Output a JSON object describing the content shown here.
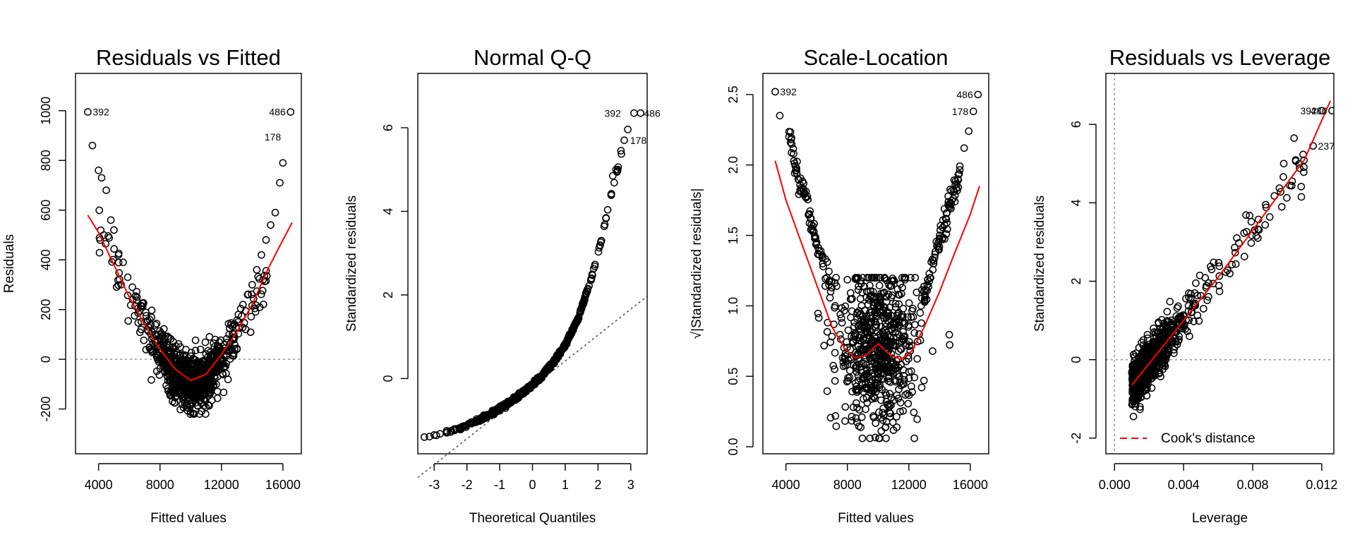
{
  "chart_data": [
    {
      "type": "scatter",
      "title": "Residuals vs Fitted",
      "xlabel": "Fitted values",
      "ylabel": "Residuals",
      "xlim": [
        2500,
        17200
      ],
      "ylim": [
        -380,
        1150
      ],
      "xticks": [
        4000,
        8000,
        12000,
        16000
      ],
      "xtick_labels": [
        "4000",
        "8000",
        "12000",
        "16000"
      ],
      "yticks": [
        -200,
        0,
        200,
        400,
        600,
        800,
        1000
      ],
      "ytick_labels": [
        "-200",
        "0",
        "200",
        "400",
        "600",
        "800",
        "1000"
      ],
      "reference_line": {
        "type": "h",
        "value": 0,
        "style": "dotted",
        "color": "#999999"
      },
      "smooth_color": "#ff0000",
      "smooth": {
        "x": [
          3300,
          4000,
          5000,
          6000,
          7000,
          8000,
          9000,
          10000,
          11000,
          12000,
          13000,
          14000,
          15000,
          16000,
          16600
        ],
        "y": [
          580,
          510,
          380,
          250,
          140,
          40,
          -40,
          -85,
          -60,
          20,
          110,
          220,
          360,
          480,
          550
        ]
      },
      "curve_points": {
        "x": [
          3300,
          3600,
          4000,
          4200,
          4500,
          4800,
          5000,
          5300,
          5600,
          5900,
          6200,
          6500,
          6800,
          7100,
          7400,
          7700,
          8000,
          8300,
          8600,
          8900,
          9200,
          9500,
          9800,
          10100,
          10400,
          10700,
          11000,
          11300,
          11600,
          11900,
          12200,
          12500,
          12800,
          13100,
          13400,
          13700,
          14000,
          14300,
          14600,
          14900,
          15200,
          15500,
          15800,
          16000,
          16500
        ],
        "y": [
          995,
          860,
          760,
          730,
          680,
          560,
          520,
          420,
          390,
          330,
          290,
          250,
          215,
          175,
          140,
          100,
          60,
          20,
          -20,
          -60,
          -100,
          -140,
          -160,
          -150,
          -120,
          -90,
          -60,
          -30,
          0,
          30,
          60,
          100,
          140,
          180,
          220,
          260,
          300,
          360,
          420,
          480,
          540,
          590,
          710,
          790,
          995
        ]
      },
      "point_labels": [
        {
          "text": "392",
          "x": 3300,
          "y": 995,
          "side": "right"
        },
        {
          "text": "486",
          "x": 16500,
          "y": 995,
          "side": "left"
        },
        {
          "text": "178",
          "x": 16200,
          "y": 895,
          "side": "left"
        }
      ],
      "band_center_x": 10000,
      "band_half_width": 4200,
      "band_center_y": -100
    },
    {
      "type": "scatter",
      "title": "Normal Q-Q",
      "xlabel": "Theoretical Quantiles",
      "ylabel": "Standardized residuals",
      "xlim": [
        -3.5,
        3.5
      ],
      "ylim": [
        -1.8,
        7.3
      ],
      "xticks": [
        -3,
        -2,
        -1,
        0,
        1,
        2,
        3
      ],
      "xtick_labels": [
        "-3",
        "-2",
        "-1",
        "0",
        "1",
        "2",
        "3"
      ],
      "yticks": [
        0,
        2,
        4,
        6
      ],
      "ytick_labels": [
        "0",
        "2",
        "4",
        "6"
      ],
      "reference_line": {
        "type": "ab",
        "intercept": -0.2,
        "slope": 0.62,
        "style": "dotted",
        "color": "#555555"
      },
      "qq_curve": {
        "x": [
          -3.3,
          -3.0,
          -2.6,
          -2.2,
          -1.8,
          -1.4,
          -1.0,
          -0.6,
          -0.2,
          0.2,
          0.6,
          1.0,
          1.4,
          1.8,
          2.1,
          2.4,
          2.6,
          2.8,
          3.1
        ],
        "y": [
          -1.4,
          -1.35,
          -1.28,
          -1.18,
          -1.05,
          -0.9,
          -0.72,
          -0.52,
          -0.28,
          0.0,
          0.35,
          0.8,
          1.45,
          2.4,
          3.3,
          4.4,
          5.0,
          5.7,
          6.35
        ]
      },
      "point_labels": [
        {
          "text": "392",
          "x": 2.85,
          "y": 6.35,
          "side": "left"
        },
        {
          "text": "486",
          "x": 3.25,
          "y": 6.35,
          "side": "right"
        },
        {
          "text": "178",
          "x": 2.83,
          "y": 5.7,
          "side": "right"
        }
      ]
    },
    {
      "type": "scatter",
      "title": "Scale-Location",
      "xlabel": "Fitted values",
      "ylabel": "√|Standardized residuals|",
      "xlim": [
        2500,
        17200
      ],
      "ylim": [
        -0.05,
        2.65
      ],
      "xticks": [
        4000,
        8000,
        12000,
        16000
      ],
      "xtick_labels": [
        "4000",
        "8000",
        "12000",
        "16000"
      ],
      "yticks": [
        0.0,
        0.5,
        1.0,
        1.5,
        2.0,
        2.5
      ],
      "ytick_labels": [
        "0.0",
        "0.5",
        "1.0",
        "1.5",
        "2.0",
        "2.5"
      ],
      "smooth_color": "#ff0000",
      "smooth": {
        "x": [
          3300,
          4000,
          5000,
          6000,
          7000,
          7800,
          8500,
          9200,
          10000,
          10800,
          11500,
          12200,
          13000,
          14000,
          15000,
          16000,
          16600
        ],
        "y": [
          2.03,
          1.75,
          1.45,
          1.15,
          0.85,
          0.7,
          0.63,
          0.65,
          0.73,
          0.65,
          0.62,
          0.68,
          0.85,
          1.1,
          1.38,
          1.65,
          1.85
        ]
      },
      "arms": {
        "left_x": [
          3300,
          3600,
          4200,
          4500,
          4800,
          5200,
          5600,
          6000,
          6400,
          6800,
          7200
        ],
        "left_y": [
          2.52,
          2.35,
          2.2,
          2.08,
          1.9,
          1.8,
          1.62,
          1.45,
          1.3,
          1.15,
          1.0
        ],
        "right_x": [
          12800,
          13200,
          13600,
          14000,
          14400,
          14800,
          15200,
          15600,
          15900,
          16200,
          16500
        ],
        "right_y": [
          1.0,
          1.15,
          1.3,
          1.48,
          1.62,
          1.75,
          1.9,
          2.12,
          2.24,
          2.38,
          2.5
        ]
      },
      "point_labels": [
        {
          "text": "392",
          "x": 3300,
          "y": 2.52,
          "side": "right"
        },
        {
          "text": "486",
          "x": 16500,
          "y": 2.5,
          "side": "left"
        },
        {
          "text": "178",
          "x": 16200,
          "y": 2.38,
          "side": "left"
        }
      ]
    },
    {
      "type": "scatter",
      "title": "Residuals vs Leverage",
      "xlabel": "Leverage",
      "ylabel": "Standardized residuals",
      "xlim": [
        -0.0005,
        0.0127
      ],
      "ylim": [
        -2.4,
        7.3
      ],
      "xticks": [
        0.0,
        0.004,
        0.008,
        0.012
      ],
      "xtick_labels": [
        "0.000",
        "0.004",
        "0.008",
        "0.012"
      ],
      "yticks": [
        -2,
        0,
        2,
        4,
        6
      ],
      "ytick_labels": [
        "-2",
        "0",
        "2",
        "4",
        "6"
      ],
      "reference_line": {
        "type": "h",
        "value": 0,
        "style": "dotted",
        "color": "#999999"
      },
      "reference_line_v": {
        "type": "v",
        "value": 0,
        "style": "dotted",
        "color": "#999999"
      },
      "smooth_color": "#ff0000",
      "smooth": {
        "x": [
          0.001,
          0.002,
          0.003,
          0.004,
          0.005,
          0.006,
          0.007,
          0.008,
          0.009,
          0.01,
          0.011,
          0.0125
        ],
        "y": [
          -0.65,
          -0.1,
          0.45,
          1.0,
          1.55,
          2.1,
          2.7,
          3.3,
          3.9,
          4.5,
          5.1,
          6.6
        ]
      },
      "point_labels": [
        {
          "text": "392",
          "x": 0.012,
          "y": 6.35,
          "side": "left"
        },
        {
          "text": "486",
          "x": 0.0126,
          "y": 6.35,
          "side": "left"
        },
        {
          "text": "237",
          "x": 0.0115,
          "y": 5.45,
          "side": "right"
        }
      ],
      "legend": {
        "label": "Cook's distance",
        "position": "bottomleft",
        "color": "#ff0000",
        "style": "dashed"
      }
    }
  ]
}
